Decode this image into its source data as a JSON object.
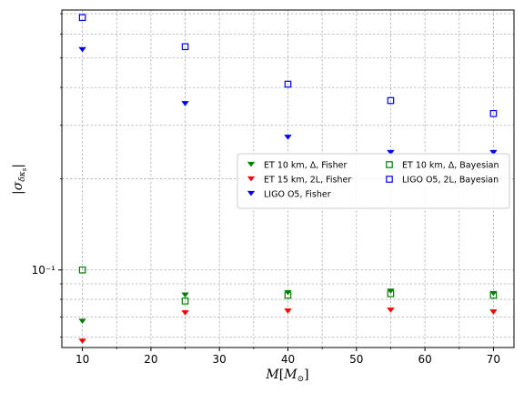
{
  "chart_data": {
    "type": "scatter",
    "title": "",
    "xlabel": "M[M_⊙]",
    "ylabel": "|σ_{δκs}|",
    "x_scale": "linear",
    "y_scale": "log",
    "xlim": [
      7,
      73
    ],
    "ylim": [
      0.0555,
      0.72
    ],
    "grid": true,
    "legend_placement": "center-right",
    "x_ticks": [
      10,
      20,
      30,
      40,
      50,
      60,
      70
    ],
    "x_tick_labels": [
      "10",
      "20",
      "30",
      "40",
      "50",
      "60",
      "70"
    ],
    "y_ticks": [
      0.1
    ],
    "y_tick_labels": [
      "10⁻¹"
    ],
    "series": [
      {
        "name": "ET 10 km, Δ, Fisher",
        "marker": "triangle-down-filled",
        "color": "#008000",
        "x": [
          10,
          25,
          40,
          55,
          70
        ],
        "y": [
          0.068,
          0.083,
          0.0845,
          0.0855,
          0.084
        ]
      },
      {
        "name": "ET 15 km, 2L, Fisher",
        "marker": "triangle-down-filled",
        "color": "#ff0000",
        "x": [
          10,
          25,
          40,
          55,
          70
        ],
        "y": [
          0.0585,
          0.0725,
          0.0735,
          0.074,
          0.073
        ]
      },
      {
        "name": "LIGO O5, Fisher",
        "marker": "triangle-down-filled",
        "color": "#0000ff",
        "x": [
          10,
          25,
          40,
          55,
          70
        ],
        "y": [
          0.535,
          0.355,
          0.275,
          0.245,
          0.245
        ]
      },
      {
        "name": "ET 10 km, Δ, Bayesian",
        "marker": "square-open",
        "color": "#008000",
        "x": [
          10,
          25,
          40,
          55,
          70
        ],
        "y": [
          0.1,
          0.079,
          0.0825,
          0.0835,
          0.0825
        ]
      },
      {
        "name": "LIGO O5, 2L, Bayesian",
        "marker": "square-open",
        "color": "#0000ff",
        "x": [
          10,
          25,
          40,
          55,
          70
        ],
        "y": [
          0.68,
          0.545,
          0.41,
          0.362,
          0.328
        ]
      }
    ]
  }
}
